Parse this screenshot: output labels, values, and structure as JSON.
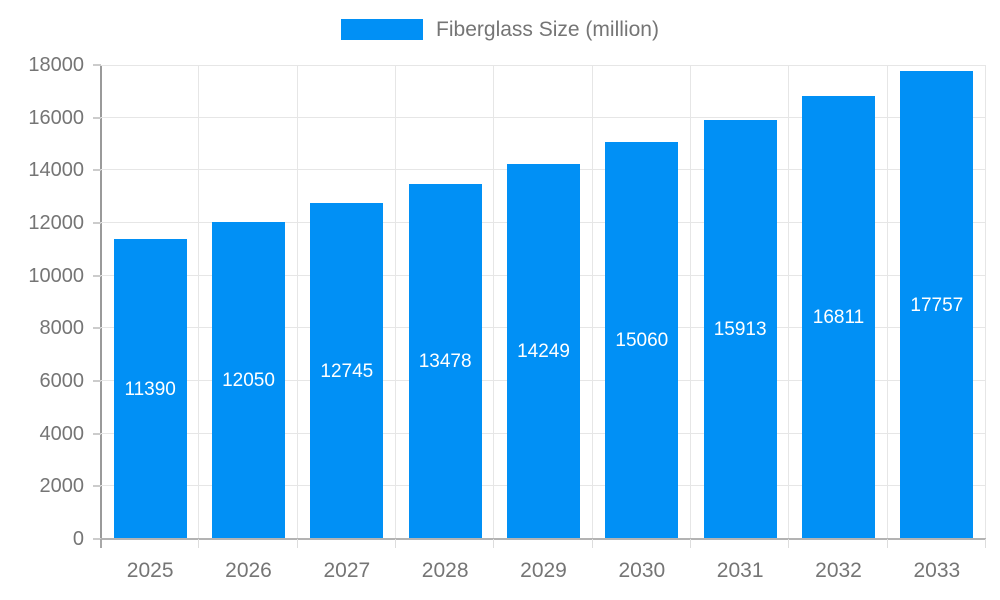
{
  "chart_data": {
    "type": "bar",
    "title": "",
    "xlabel": "",
    "ylabel": "",
    "categories": [
      "2025",
      "2026",
      "2027",
      "2028",
      "2029",
      "2030",
      "2031",
      "2032",
      "2033"
    ],
    "series": [
      {
        "name": "Fiberglass Size (million)",
        "values": [
          11390,
          12050,
          12745,
          13478,
          14249,
          15060,
          15913,
          16811,
          17757
        ],
        "color": "#0190f5"
      }
    ],
    "ylim": [
      0,
      18000
    ],
    "y_ticks": [
      0,
      2000,
      4000,
      6000,
      8000,
      10000,
      12000,
      14000,
      16000,
      18000
    ],
    "grid": true,
    "grid_color": "#e6e6e6",
    "legend_position": "top-center",
    "bar_labels_shown": true,
    "bar_label_color": "#ffffff",
    "axis_text_color": "#757575"
  }
}
